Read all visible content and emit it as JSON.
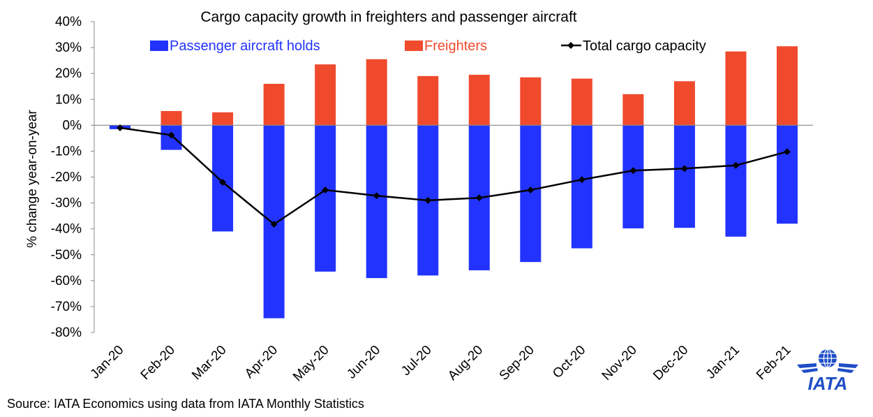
{
  "chart_data": {
    "type": "bar",
    "title": "Cargo capacity growth in freighters and passenger aircraft",
    "ylabel": "% change year-on-year",
    "xlabel": "",
    "ylim": [
      -80,
      40
    ],
    "yticks": [
      40,
      30,
      20,
      10,
      0,
      -10,
      -20,
      -30,
      -40,
      -50,
      -60,
      -70,
      -80
    ],
    "ytick_labels": [
      "40%",
      "30%",
      "20%",
      "10%",
      "0%",
      "-10%",
      "-20%",
      "-30%",
      "-40%",
      "-50%",
      "-60%",
      "-70%",
      "-80%"
    ],
    "categories": [
      "Jan-20",
      "Feb-20",
      "Mar-20",
      "Apr-20",
      "May-20",
      "Jun-20",
      "Jul-20",
      "Aug-20",
      "Sep-20",
      "Oct-20",
      "Nov-20",
      "Dec-20",
      "Jan-21",
      "Feb-21"
    ],
    "series": [
      {
        "name": "Passenger aircraft holds",
        "type": "bar",
        "color": "#2233ff",
        "values": [
          -1.5,
          -9.5,
          -41,
          -74.5,
          -56.5,
          -59,
          -58,
          -56,
          -52.8,
          -47.5,
          -39.8,
          -39.6,
          -43,
          -38
        ]
      },
      {
        "name": "Freighters",
        "type": "bar",
        "color": "#f04a2d",
        "values": [
          0,
          5.5,
          5,
          16,
          23.5,
          25.5,
          19,
          19.5,
          18.5,
          18,
          12,
          17,
          28.5,
          30.5
        ]
      },
      {
        "name": "Total cargo capacity",
        "type": "line",
        "color": "#000000",
        "values": [
          -1,
          -3.8,
          -22,
          -38.2,
          -25,
          -27.2,
          -29,
          -28,
          -25,
          -21,
          -17.5,
          -16.7,
          -15.5,
          -10.2
        ]
      }
    ],
    "legend": "top",
    "grid": false,
    "source": "Source: IATA Economics using data from IATA Monthly Statistics"
  },
  "logo": {
    "text": "IATA",
    "icon": "iata-globe-wings-icon",
    "color": "#1e4ec6"
  }
}
